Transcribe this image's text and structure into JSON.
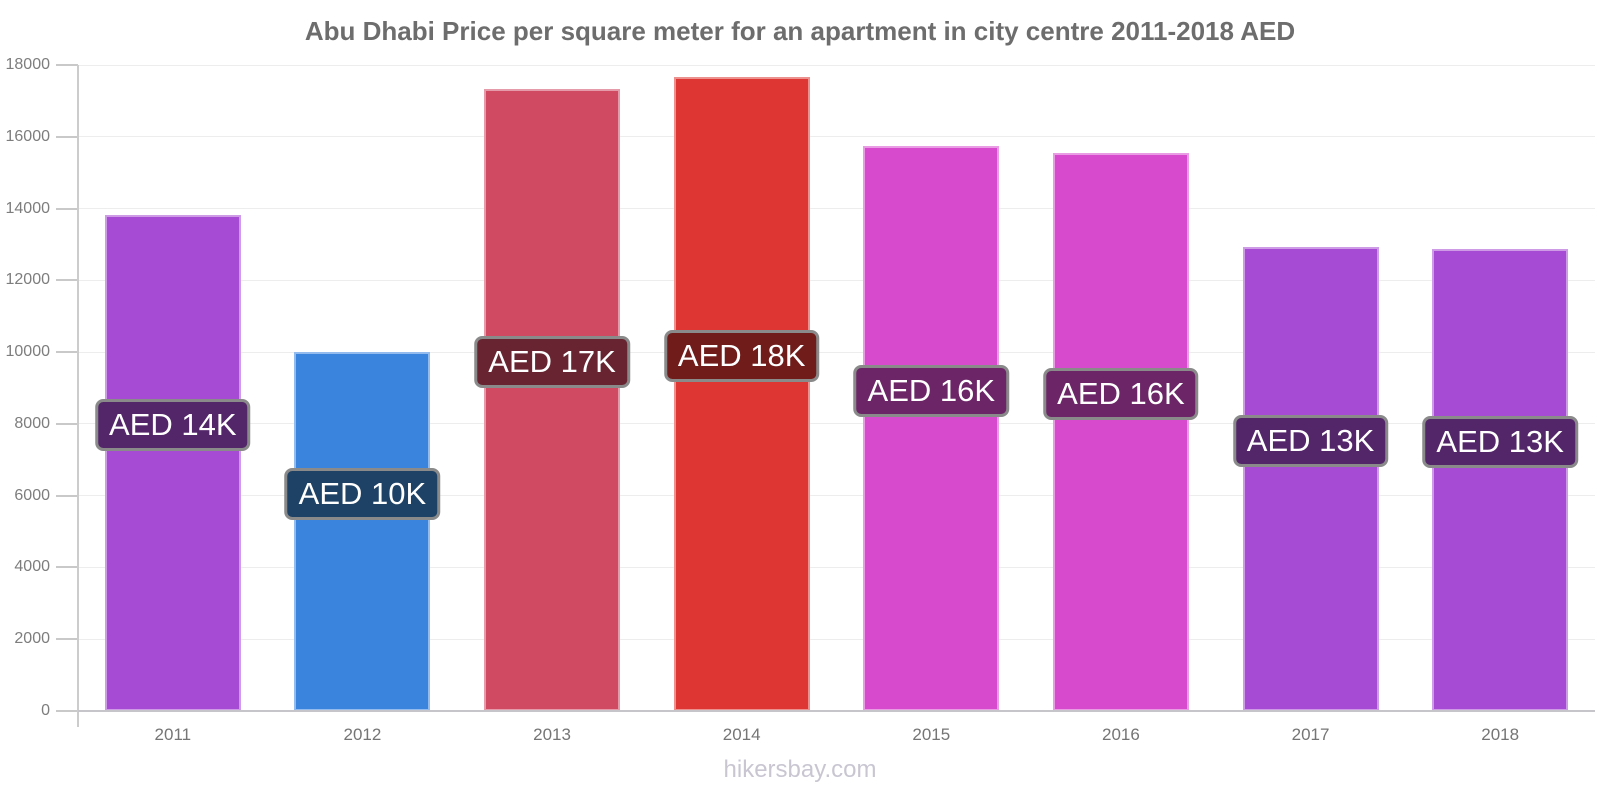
{
  "title": "Abu Dhabi Price per square meter for an apartment in city centre 2011-2018 AED",
  "footer": "hikersbay.com",
  "chart_data": {
    "type": "bar",
    "title": "Abu Dhabi Price per square meter for an apartment in city centre 2011-2018 AED",
    "categories": [
      "2011",
      "2012",
      "2013",
      "2014",
      "2015",
      "2016",
      "2017",
      "2018"
    ],
    "values": [
      13830,
      10000,
      17340,
      17660,
      15740,
      15550,
      12930,
      12880
    ],
    "bar_labels": [
      "AED 14K",
      "AED 10K",
      "AED 17K",
      "AED 18K",
      "AED 16K",
      "AED 16K",
      "AED 13K",
      "AED 13K"
    ],
    "bar_colors": [
      "#a64bd3",
      "#3b84de",
      "#d04a62",
      "#de3733",
      "#d74ace",
      "#d74ace",
      "#a64bd3",
      "#a64bd3"
    ],
    "label_bg_colors": [
      "#532569",
      "#1e4266",
      "#682531",
      "#6f1c1a",
      "#6c2567",
      "#6c2567",
      "#532569",
      "#532569"
    ],
    "xlabel": "",
    "ylabel": "",
    "ylim": [
      0,
      18000
    ],
    "yticks": [
      0,
      2000,
      4000,
      6000,
      8000,
      10000,
      12000,
      14000,
      16000,
      18000
    ],
    "grid": true,
    "legend": false,
    "currency": "AED"
  },
  "colors": {
    "axis": "#c6c6ca",
    "grid": "#ededed",
    "tick_text": "#7d7d7d",
    "category_text": "#757575",
    "title_text": "#6d6d6d",
    "footer_text": "#c9c6d2",
    "value_label_text": "#ffffff",
    "value_label_border": "#8a8a8a"
  }
}
